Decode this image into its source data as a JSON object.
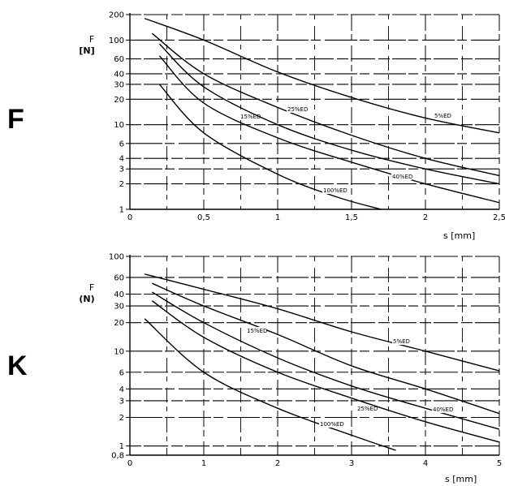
{
  "panels": {
    "F": {
      "letter": "F"
    },
    "K": {
      "letter": "K"
    }
  },
  "chart_data": [
    {
      "id": "F",
      "type": "line",
      "ylabel": "F",
      "yunit": "[N]",
      "xlabel": "s [mm]",
      "yscale": "log",
      "xlim": [
        0,
        2.5
      ],
      "ylim": [
        1,
        200
      ],
      "grid": true,
      "x_ticks": [
        0,
        0.5,
        1,
        1.5,
        2,
        2.5
      ],
      "x_tick_labels": [
        "0",
        "0,5",
        "1",
        "1,5",
        "2",
        "2,5"
      ],
      "y_ticks": [
        1,
        2,
        3,
        4,
        6,
        10,
        20,
        30,
        40,
        60,
        100,
        200
      ],
      "y_tick_labels": [
        "1",
        "2",
        "3",
        "4",
        "6",
        "10",
        "20",
        "30",
        "40",
        "60",
        "100",
        "200"
      ],
      "series": [
        {
          "name": "5%ED",
          "x": [
            0.1,
            0.5,
            1,
            1.5,
            2,
            2.5
          ],
          "y": [
            180,
            100,
            42,
            21,
            12,
            8
          ]
        },
        {
          "name": "15%ED",
          "x": [
            0.15,
            0.5,
            1,
            1.5,
            2,
            2.5
          ],
          "y": [
            120,
            40,
            16,
            7.5,
            4,
            2.5
          ]
        },
        {
          "name": "25%ED",
          "x": [
            0.2,
            0.5,
            1,
            1.5,
            2,
            2.5
          ],
          "y": [
            90,
            28,
            10,
            5,
            3,
            2
          ]
        },
        {
          "name": "40%ED",
          "x": [
            0.2,
            0.5,
            1,
            1.5,
            2,
            2.5
          ],
          "y": [
            65,
            18,
            7,
            3.6,
            2,
            1.2
          ]
        },
        {
          "name": "100%ED",
          "x": [
            0.2,
            0.5,
            1,
            1.4,
            1.7
          ],
          "y": [
            30,
            8,
            2.6,
            1.4,
            1
          ]
        }
      ]
    },
    {
      "id": "K",
      "type": "line",
      "ylabel": "F",
      "yunit": "(N)",
      "xlabel": "s [mm]",
      "yscale": "log",
      "xlim": [
        0,
        5
      ],
      "ylim": [
        0.8,
        100
      ],
      "grid": true,
      "x_ticks": [
        0,
        1,
        2,
        3,
        4,
        5
      ],
      "x_tick_labels": [
        "0",
        "1",
        "2",
        "3",
        "4",
        "5"
      ],
      "y_ticks": [
        0.8,
        1,
        2,
        3,
        4,
        6,
        10,
        20,
        30,
        40,
        60,
        100
      ],
      "y_tick_labels": [
        "0,8",
        "1",
        "2",
        "3",
        "4",
        "6",
        "10",
        "20",
        "30",
        "40",
        "60",
        "100"
      ],
      "series": [
        {
          "name": "5%ED",
          "x": [
            0.2,
            1,
            2,
            3,
            4,
            5
          ],
          "y": [
            65,
            45,
            28,
            16,
            10,
            6.2
          ]
        },
        {
          "name": "15%ED",
          "x": [
            0.3,
            1,
            2,
            3,
            4,
            5
          ],
          "y": [
            52,
            30,
            15,
            7,
            4,
            2.2
          ]
        },
        {
          "name": "25%ED",
          "x": [
            0.3,
            1,
            2,
            3,
            4,
            5
          ],
          "y": [
            42,
            20,
            8.5,
            4.3,
            2.5,
            1.5
          ]
        },
        {
          "name": "40%ED",
          "x": [
            0.3,
            1,
            2,
            3,
            4,
            5
          ],
          "y": [
            34,
            14,
            6,
            3.2,
            1.8,
            1.1
          ]
        },
        {
          "name": "100%ED",
          "x": [
            0.2,
            1,
            2,
            3,
            3.6
          ],
          "y": [
            22,
            6,
            2.5,
            1.3,
            0.9
          ]
        }
      ]
    }
  ]
}
